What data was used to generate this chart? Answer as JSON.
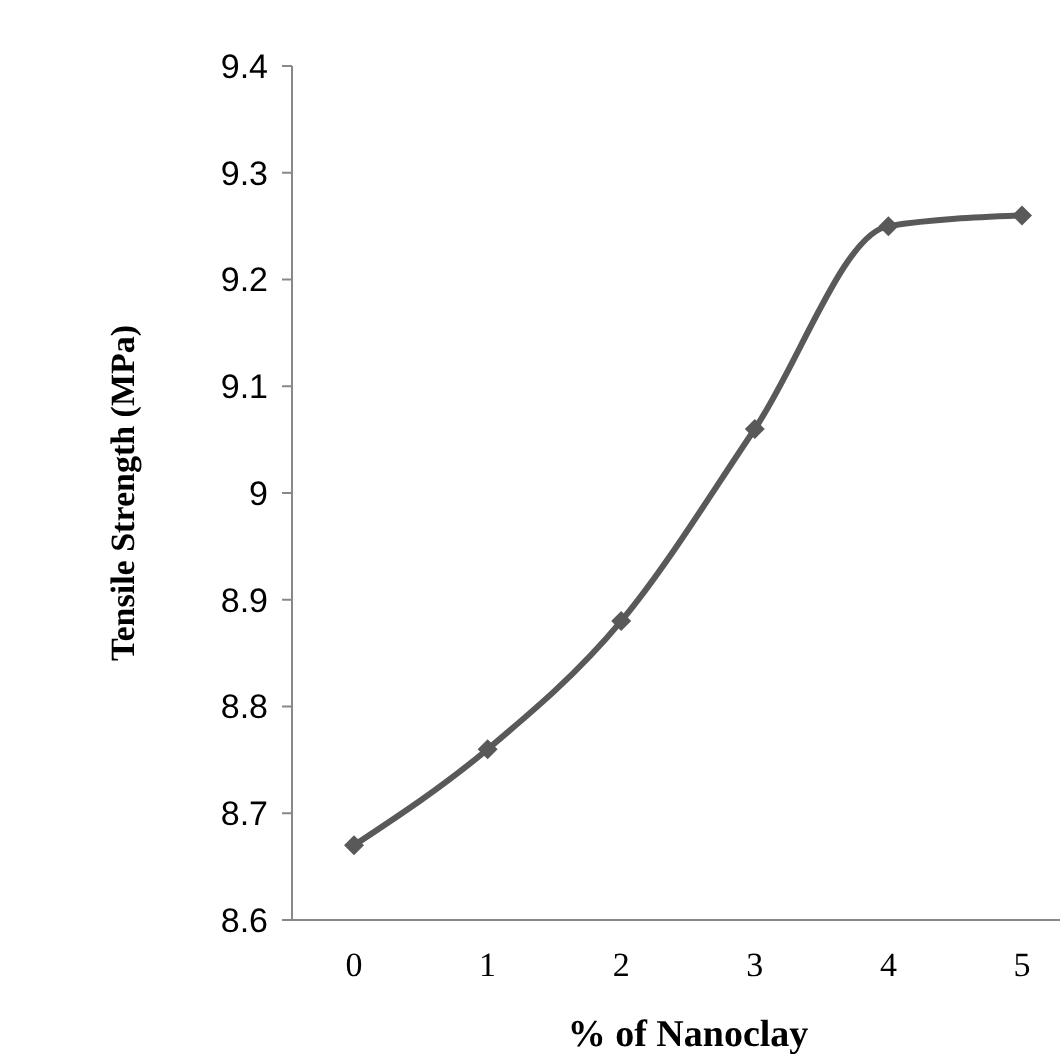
{
  "chart_data": {
    "type": "line",
    "xlabel": "% of Nanoclay",
    "ylabel": "Tensile Strength (MPa)",
    "categories": [
      "0",
      "1",
      "2",
      "3",
      "4",
      "5"
    ],
    "series": [
      {
        "color": "#595959",
        "values": [
          8.67,
          8.76,
          8.88,
          9.06,
          9.25,
          9.26
        ]
      }
    ],
    "ylim": [
      8.6,
      9.4
    ],
    "yticks": [
      8.6,
      8.7,
      8.8,
      8.9,
      9,
      9.1,
      9.2,
      9.3,
      9.4
    ],
    "marker": "diamond",
    "line_style": "solid"
  }
}
